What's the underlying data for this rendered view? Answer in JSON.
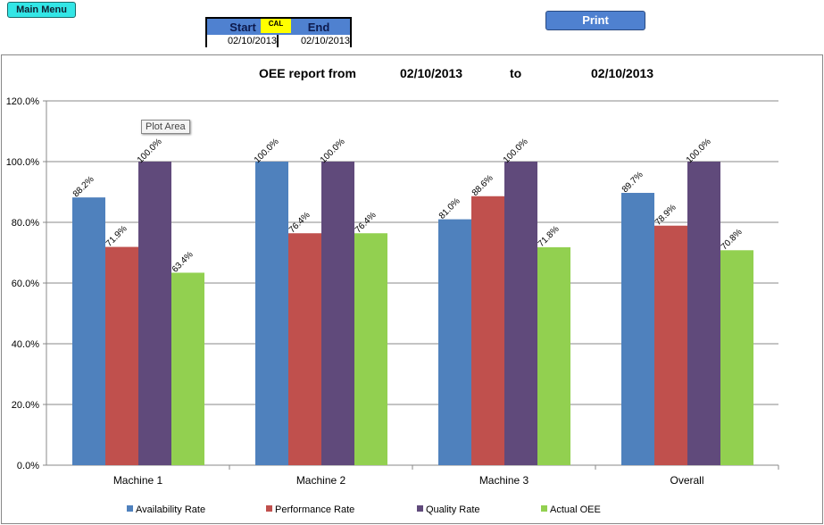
{
  "toolbar": {
    "main_menu": "Main Menu",
    "print": "Print",
    "cal": "CAL"
  },
  "date_range": {
    "start_label": "Start",
    "end_label": "End",
    "start": "02/10/2013",
    "end": "02/10/2013"
  },
  "title": {
    "prefix": "OEE report from",
    "from": "02/10/2013",
    "to_label": "to",
    "to": "02/10/2013"
  },
  "tooltip": "Plot Area",
  "chart_data": {
    "type": "bar",
    "categories": [
      "Machine 1",
      "Machine 2",
      "Machine 3",
      "Overall"
    ],
    "series": [
      {
        "name": "Availability Rate",
        "color": "#4f81bd",
        "values": [
          88.2,
          100.0,
          81.0,
          89.7
        ]
      },
      {
        "name": "Performance Rate",
        "color": "#c0504d",
        "values": [
          71.9,
          76.4,
          88.6,
          78.9
        ]
      },
      {
        "name": "Quality Rate",
        "color": "#604a7b",
        "values": [
          100.0,
          100.0,
          100.0,
          100.0
        ]
      },
      {
        "name": "Actual OEE",
        "color": "#92d050",
        "values": [
          63.4,
          76.4,
          71.8,
          70.8
        ]
      }
    ],
    "yticks": [
      "0.0%",
      "20.0%",
      "40.0%",
      "60.0%",
      "80.0%",
      "100.0%",
      "120.0%"
    ],
    "ylim": [
      0,
      120
    ],
    "grid": true,
    "legend": "bottom"
  }
}
